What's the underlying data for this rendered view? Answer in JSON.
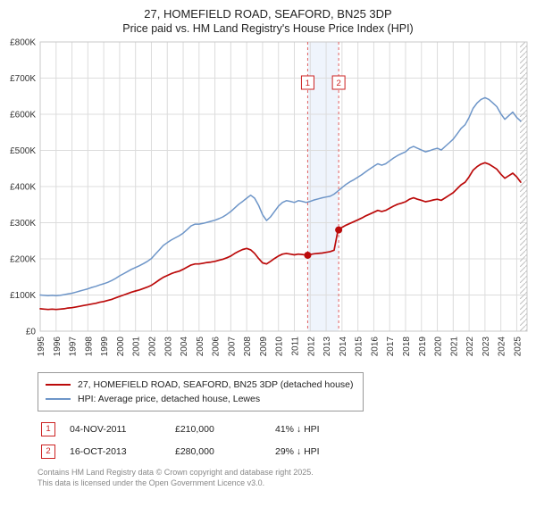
{
  "chart_data": {
    "type": "line",
    "title": "27, HOMEFIELD ROAD, SEAFORD, BN25 3DP",
    "subtitle": "Price paid vs. HM Land Registry's House Price Index (HPI)",
    "value_unit": "GBP thousands",
    "xlim": [
      1995,
      2025.65
    ],
    "ylim": [
      0,
      800
    ],
    "x_ticks": [
      1995,
      1996,
      1997,
      1998,
      1999,
      2000,
      2001,
      2002,
      2003,
      2004,
      2005,
      2006,
      2007,
      2008,
      2009,
      2010,
      2011,
      2012,
      2013,
      2014,
      2015,
      2016,
      2017,
      2018,
      2019,
      2020,
      2021,
      2022,
      2023,
      2024,
      2025
    ],
    "y_ticks": [
      0,
      100,
      200,
      300,
      400,
      500,
      600,
      700,
      800
    ],
    "y_tick_labels": [
      "£0",
      "£100K",
      "£200K",
      "£300K",
      "£400K",
      "£500K",
      "£600K",
      "£700K",
      "£800K"
    ],
    "grid": true,
    "legend_position": "bottom",
    "band": {
      "from": 2011.84,
      "to": 2013.79,
      "color": "#e8effb"
    },
    "hatch_from": 2025.2,
    "series": [
      {
        "name": "27, HOMEFIELD ROAD, SEAFORD, BN25 3DP (detached house)",
        "color": "#bb0a0a",
        "width": 1.7,
        "x_start": 1995,
        "x_step": 0.25,
        "values": [
          62,
          61,
          60,
          61,
          60,
          61,
          62,
          64,
          65,
          67,
          69,
          71,
          73,
          75,
          77,
          80,
          82,
          85,
          88,
          92,
          96,
          100,
          104,
          108,
          111,
          114,
          118,
          122,
          127,
          134,
          142,
          149,
          154,
          159,
          163,
          166,
          171,
          177,
          183,
          186,
          186,
          188,
          190,
          191,
          193,
          196,
          199,
          203,
          208,
          215,
          221,
          226,
          229,
          225,
          215,
          201,
          189,
          186,
          193,
          201,
          208,
          213,
          215,
          213,
          211,
          213,
          212,
          210,
          212,
          214,
          215,
          216,
          218,
          220,
          224,
          280,
          287,
          293,
          298,
          303,
          308,
          313,
          319,
          324,
          329,
          334,
          331,
          334,
          340,
          346,
          351,
          354,
          358,
          365,
          369,
          365,
          362,
          358,
          360,
          363,
          365,
          362,
          369,
          376,
          383,
          394,
          405,
          412,
          427,
          445,
          455,
          462,
          466,
          462,
          455,
          448,
          434,
          423,
          430,
          437,
          427,
          412
        ]
      },
      {
        "name": "HPI: Average price, detached house, Lewes",
        "color": "#6d95c8",
        "width": 1.5,
        "x_start": 1995,
        "x_step": 0.25,
        "values": [
          100,
          99,
          98,
          99,
          98,
          99,
          101,
          103,
          105,
          108,
          111,
          114,
          117,
          121,
          124,
          128,
          131,
          135,
          140,
          146,
          153,
          159,
          165,
          171,
          176,
          181,
          187,
          193,
          201,
          213,
          225,
          237,
          245,
          252,
          258,
          264,
          271,
          281,
          291,
          296,
          296,
          298,
          301,
          304,
          307,
          311,
          316,
          323,
          331,
          341,
          351,
          359,
          368,
          376,
          368,
          348,
          322,
          306,
          316,
          331,
          346,
          356,
          361,
          359,
          356,
          361,
          359,
          356,
          359,
          363,
          366,
          369,
          371,
          373,
          379,
          388,
          397,
          406,
          413,
          419,
          426,
          433,
          441,
          449,
          456,
          463,
          459,
          463,
          471,
          479,
          486,
          491,
          496,
          506,
          511,
          506,
          501,
          496,
          499,
          503,
          506,
          501,
          511,
          521,
          531,
          546,
          561,
          571,
          591,
          616,
          631,
          641,
          646,
          641,
          631,
          621,
          601,
          586,
          596,
          606,
          591,
          581
        ]
      }
    ],
    "sales": [
      {
        "label": "1",
        "x": 2011.84,
        "value": 210
      },
      {
        "label": "2",
        "x": 2013.79,
        "value": 280
      }
    ]
  },
  "transactions": [
    {
      "num": "1",
      "date": "04-NOV-2011",
      "price": "£210,000",
      "vs_hpi": "41% ↓ HPI"
    },
    {
      "num": "2",
      "date": "16-OCT-2013",
      "price": "£280,000",
      "vs_hpi": "29% ↓ HPI"
    }
  ],
  "footer": {
    "line1": "Contains HM Land Registry data © Crown copyright and database right 2025.",
    "line2": "This data is licensed under the Open Government Licence v3.0."
  }
}
